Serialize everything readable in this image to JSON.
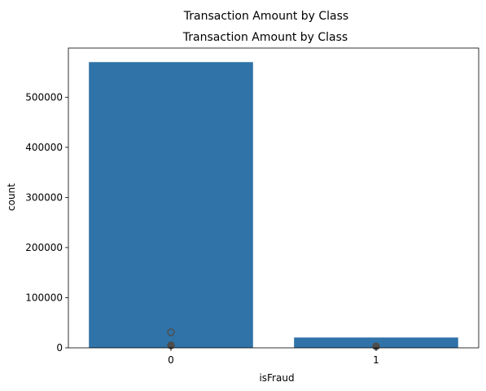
{
  "chart_data": {
    "type": "bar",
    "suptitle": "Transaction Amount by Class",
    "title": "Transaction Amount by Class",
    "xlabel": "isFraud",
    "ylabel": "count",
    "categories": [
      "0",
      "1"
    ],
    "values": [
      570000,
      20600
    ],
    "ylim": [
      0,
      598000
    ],
    "yticks": [
      0,
      100000,
      200000,
      300000,
      400000,
      500000
    ],
    "ytick_labels": [
      "0",
      "100000",
      "200000",
      "300000",
      "400000",
      "500000"
    ],
    "grid": false,
    "bar_color": "#2f73a8",
    "outlier_color": "#4d4d4d",
    "outliers": [
      {
        "category": "0",
        "value": 31000,
        "filled": false
      },
      {
        "category": "0",
        "value": 5000,
        "filled": true
      },
      {
        "category": "1",
        "value": 3000,
        "filled": true
      }
    ]
  }
}
